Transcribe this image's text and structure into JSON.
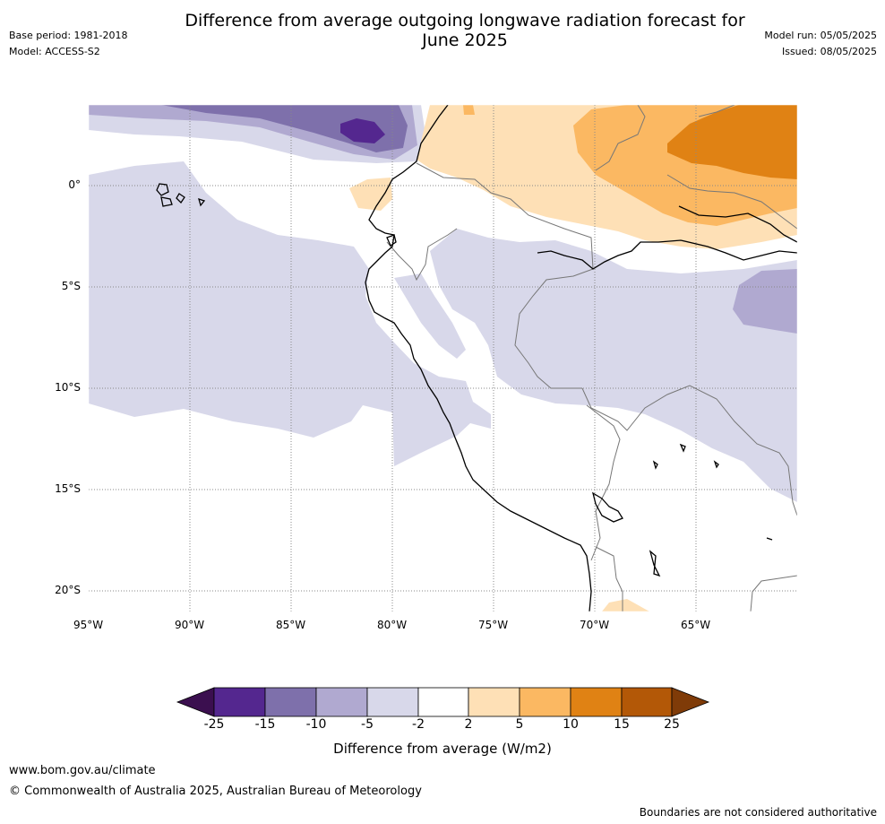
{
  "header": {
    "title_line1": "Difference from average outgoing longwave radiation forecast for",
    "title_line2": "June 2025",
    "base_period": "Base period: 1981-2018",
    "model": "Model: ACCESS-S2",
    "model_run": "Model run: 05/05/2025",
    "issued": "Issued: 08/05/2025"
  },
  "map": {
    "lon_labels": [
      "95°W",
      "90°W",
      "85°W",
      "80°W",
      "75°W",
      "70°W",
      "65°W"
    ],
    "lat_labels": [
      "0°",
      "5°S",
      "10°S",
      "15°S",
      "20°S"
    ]
  },
  "colorbar": {
    "label": "Difference from average (W/m2)",
    "ticks": [
      "-25",
      "-15",
      "-10",
      "-5",
      "-2",
      "2",
      "5",
      "10",
      "15",
      "25"
    ],
    "colors": [
      "#3b0f4f",
      "#54278f",
      "#7e70ab",
      "#b0a9d0",
      "#d8d8ea",
      "#ffffff",
      "#fee0b6",
      "#fbb862",
      "#e08214",
      "#b35807",
      "#7f3b08"
    ]
  },
  "footer": {
    "website": "www.bom.gov.au/climate",
    "copyright": "© Commonwealth of Australia 2025, Australian Bureau of Meteorology",
    "disclaimer": "Boundaries are not considered authoritative"
  }
}
